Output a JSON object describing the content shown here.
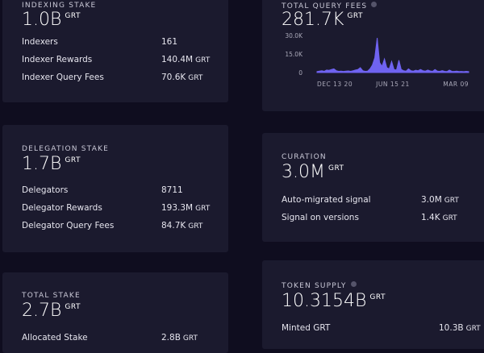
{
  "indexing": {
    "label": "Indexing Stake",
    "value": "1.0B",
    "unit": "GRT",
    "rows": [
      {
        "label": "Indexers",
        "value": "161",
        "unit": ""
      },
      {
        "label": "Indexer Rewards",
        "value": "140.4M",
        "unit": "GRT"
      },
      {
        "label": "Indexer Query Fees",
        "value": "70.6K",
        "unit": "GRT"
      }
    ]
  },
  "delegation": {
    "label": "Delegation Stake",
    "value": "1.7B",
    "unit": "GRT",
    "rows": [
      {
        "label": "Delegators",
        "value": "8711",
        "unit": ""
      },
      {
        "label": "Delegator Rewards",
        "value": "193.3M",
        "unit": "GRT"
      },
      {
        "label": "Delegator Query Fees",
        "value": "84.7K",
        "unit": "GRT"
      }
    ]
  },
  "total": {
    "label": "Total Stake",
    "value": "2.7B",
    "unit": "GRT",
    "rows": [
      {
        "label": "Allocated Stake",
        "value": "2.8B",
        "unit": "GRT"
      }
    ]
  },
  "query_fees": {
    "label": "Total Query Fees",
    "value": "281.7K",
    "unit": "GRT"
  },
  "curation": {
    "label": "Curation",
    "value": "3.0M",
    "unit": "GRT",
    "rows": [
      {
        "label": "Auto-migrated signal",
        "value": "3.0M",
        "unit": "GRT"
      },
      {
        "label": "Signal on versions",
        "value": "1.4K",
        "unit": "GRT"
      }
    ]
  },
  "supply": {
    "label": "Token Supply",
    "value": "10.3154B",
    "unit": "GRT",
    "rows": [
      {
        "label": "Minted GRT",
        "value": "10.3B",
        "unit": "GRT"
      }
    ]
  },
  "chart_data": {
    "type": "area",
    "title": "Total Query Fees",
    "color": "#6f63f0",
    "ylim": [
      0,
      30000
    ],
    "yticks": [
      "30.0K",
      "15.0K",
      "0"
    ],
    "ytick_values": [
      30000,
      15000,
      0
    ],
    "xticks": [
      "DEC 13 20",
      "JUN 15 21",
      "MAR 09"
    ],
    "values": [
      800,
      1200,
      1500,
      1000,
      2000,
      1800,
      2500,
      3000,
      1500,
      1000,
      1200,
      900,
      1100,
      1300,
      1000,
      1500,
      2000,
      2500,
      4000,
      1500,
      1000,
      1200,
      3000,
      6000,
      12000,
      28000,
      8000,
      5000,
      11000,
      4000,
      3000,
      9000,
      2500,
      2000,
      10000,
      2500,
      1500,
      1200,
      3000,
      1500,
      1200,
      1800,
      1500,
      2500,
      1500,
      1200,
      2000,
      1300,
      1000,
      2500,
      1200,
      1000,
      1500,
      1000,
      800,
      2000,
      1000,
      900,
      1200,
      800,
      900,
      700,
      1000,
      800
    ]
  }
}
